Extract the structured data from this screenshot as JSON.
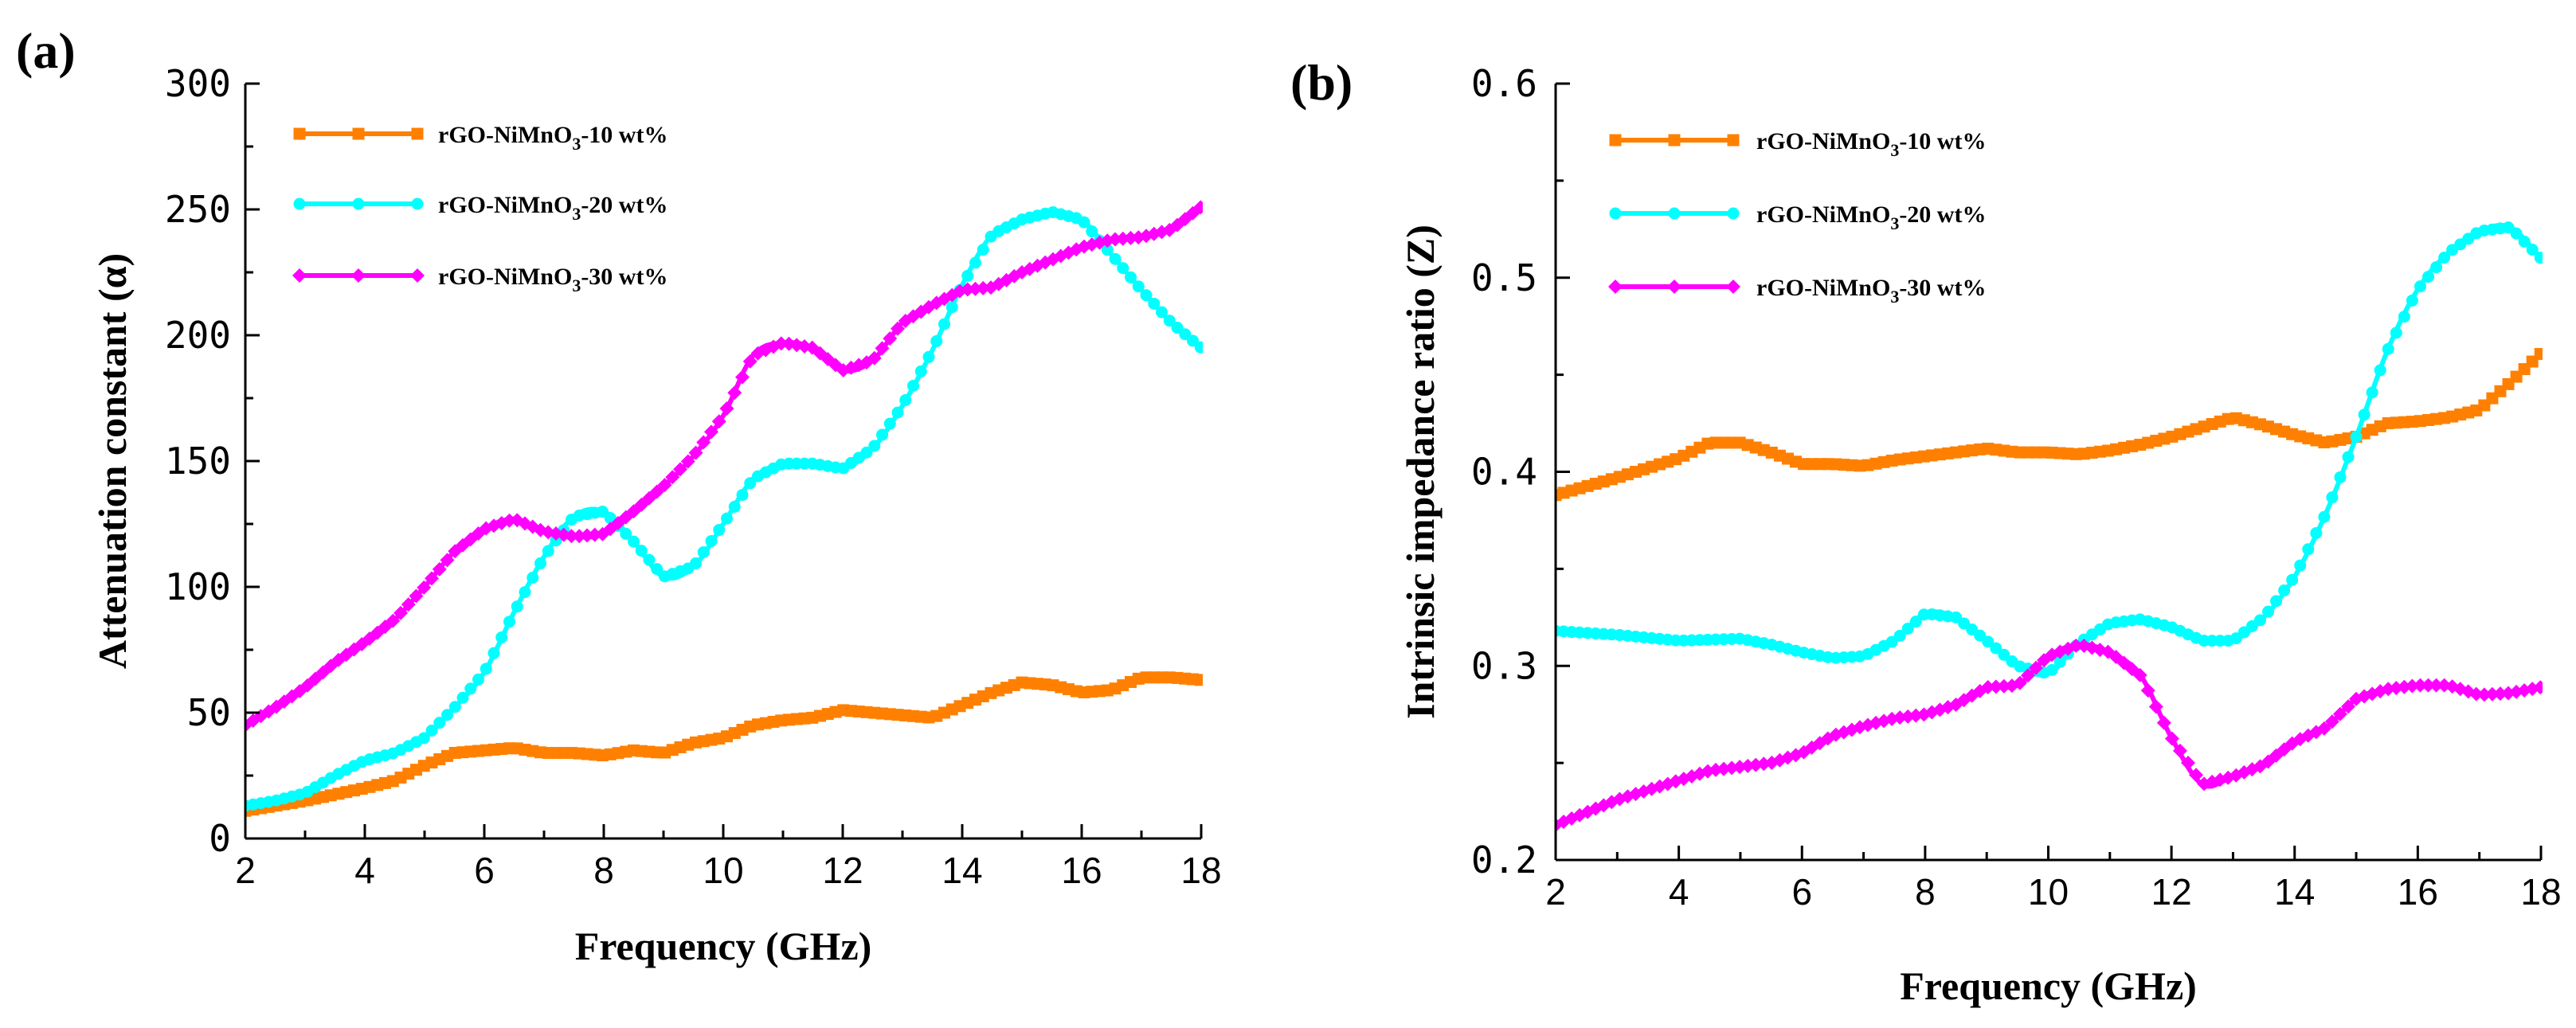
{
  "colors": {
    "series_10": "#ff8000",
    "series_20": "#00ffff",
    "series_30": "#ff00ff",
    "axis": "#000000"
  },
  "chart_data": [
    {
      "id": "a",
      "panel_label": "(a)",
      "type": "line",
      "title": "",
      "xlabel": "Frequency (GHz)",
      "ylabel": "Attenuation constant (α)",
      "xlim": [
        2,
        18
      ],
      "ylim": [
        0,
        300
      ],
      "xticks": [
        2,
        4,
        6,
        8,
        10,
        12,
        14,
        16,
        18
      ],
      "yticks": [
        0,
        50,
        100,
        150,
        200,
        250,
        300
      ],
      "xtick_labels": [
        "2",
        "4",
        "6",
        "8",
        "10",
        "12",
        "14",
        "16",
        "18"
      ],
      "ytick_labels": [
        "0",
        "50",
        "100",
        "150",
        "200",
        "250",
        "300"
      ],
      "legend_position": "top-left",
      "series": [
        {
          "name": "rGO-NiMnO3-10 wt%",
          "legend": {
            "prefix": "rGO-NiMnO",
            "sub": "3",
            "suffix": "-10 wt%"
          },
          "color": "#ff8000",
          "marker": "square",
          "points": [
            [
              2,
              11
            ],
            [
              3,
              15
            ],
            [
              4,
              20
            ],
            [
              4.5,
              23
            ],
            [
              5,
              29
            ],
            [
              5.5,
              34
            ],
            [
              6,
              35
            ],
            [
              6.5,
              36
            ],
            [
              7,
              34
            ],
            [
              7.5,
              34
            ],
            [
              8,
              33
            ],
            [
              8.5,
              35
            ],
            [
              9,
              34
            ],
            [
              9.5,
              38
            ],
            [
              10,
              40
            ],
            [
              10.5,
              45
            ],
            [
              11,
              47
            ],
            [
              11.5,
              48
            ],
            [
              12,
              51
            ],
            [
              12.5,
              50
            ],
            [
              13,
              49
            ],
            [
              13.5,
              48
            ],
            [
              14,
              53
            ],
            [
              14.5,
              58
            ],
            [
              15,
              62
            ],
            [
              15.5,
              61
            ],
            [
              16,
              58
            ],
            [
              16.5,
              59
            ],
            [
              17,
              64
            ],
            [
              17.5,
              64
            ],
            [
              18,
              63
            ]
          ]
        },
        {
          "name": "rGO-NiMnO3-20 wt%",
          "legend": {
            "prefix": "rGO-NiMnO",
            "sub": "3",
            "suffix": "-20 wt%"
          },
          "color": "#00ffff",
          "marker": "circle",
          "points": [
            [
              2,
              13
            ],
            [
              2.5,
              15
            ],
            [
              3,
              18
            ],
            [
              3.5,
              25
            ],
            [
              4,
              31
            ],
            [
              4.5,
              34
            ],
            [
              5,
              40
            ],
            [
              5.5,
              52
            ],
            [
              6,
              66
            ],
            [
              6.5,
              90
            ],
            [
              7,
              112
            ],
            [
              7.5,
              128
            ],
            [
              8,
              130
            ],
            [
              8.5,
              118
            ],
            [
              9,
              104
            ],
            [
              9.5,
              108
            ],
            [
              10,
              125
            ],
            [
              10.5,
              143
            ],
            [
              11,
              149
            ],
            [
              11.5,
              149
            ],
            [
              12,
              147
            ],
            [
              12.5,
              155
            ],
            [
              13,
              172
            ],
            [
              13.5,
              194
            ],
            [
              14,
              220
            ],
            [
              14.5,
              240
            ],
            [
              15,
              246
            ],
            [
              15.5,
              249
            ],
            [
              16,
              246
            ],
            [
              16.5,
              232
            ],
            [
              17,
              218
            ],
            [
              17.5,
              205
            ],
            [
              18,
              195
            ]
          ]
        },
        {
          "name": "rGO-NiMnO3-30 wt%",
          "legend": {
            "prefix": "rGO-NiMnO",
            "sub": "3",
            "suffix": "-30 wt%"
          },
          "color": "#ff00ff",
          "marker": "diamond",
          "points": [
            [
              2,
              45
            ],
            [
              2.5,
              52
            ],
            [
              3,
              60
            ],
            [
              3.5,
              70
            ],
            [
              4,
              78
            ],
            [
              4.5,
              87
            ],
            [
              5,
              100
            ],
            [
              5.5,
              114
            ],
            [
              6,
              123
            ],
            [
              6.5,
              127
            ],
            [
              7,
              122
            ],
            [
              7.5,
              120
            ],
            [
              8,
              121
            ],
            [
              8.5,
              130
            ],
            [
              9,
              140
            ],
            [
              9.5,
              152
            ],
            [
              10,
              168
            ],
            [
              10.5,
              192
            ],
            [
              11,
              197
            ],
            [
              11.5,
              195
            ],
            [
              12,
              186
            ],
            [
              12.5,
              190
            ],
            [
              13,
              205
            ],
            [
              13.5,
              212
            ],
            [
              14,
              218
            ],
            [
              14.5,
              219
            ],
            [
              15,
              225
            ],
            [
              15.5,
              230
            ],
            [
              16,
              235
            ],
            [
              16.5,
              238
            ],
            [
              17,
              239
            ],
            [
              17.5,
              242
            ],
            [
              18,
              251
            ]
          ]
        }
      ]
    },
    {
      "id": "b",
      "panel_label": "(b)",
      "type": "line",
      "title": "",
      "xlabel": "Frequency (GHz)",
      "ylabel": "Intrinsic impedance ratio (Z)",
      "xlim": [
        2,
        18
      ],
      "ylim": [
        0.2,
        0.6
      ],
      "xticks": [
        2,
        4,
        6,
        8,
        10,
        12,
        14,
        16,
        18
      ],
      "yticks": [
        0.2,
        0.3,
        0.4,
        0.5,
        0.6
      ],
      "xtick_labels": [
        "2",
        "4",
        "6",
        "8",
        "10",
        "12",
        "14",
        "16",
        "18"
      ],
      "ytick_labels": [
        "0.2",
        "0.3",
        "0.4",
        "0.5",
        "0.6"
      ],
      "legend_position": "top-left",
      "series": [
        {
          "name": "rGO-NiMnO3-10 wt%",
          "legend": {
            "prefix": "rGO-NiMnO",
            "sub": "3",
            "suffix": "-10 wt%"
          },
          "color": "#ff8000",
          "marker": "square",
          "points": [
            [
              2,
              0.388
            ],
            [
              3,
              0.397
            ],
            [
              4,
              0.407
            ],
            [
              4.5,
              0.415
            ],
            [
              5,
              0.415
            ],
            [
              5.5,
              0.41
            ],
            [
              6,
              0.404
            ],
            [
              6.5,
              0.404
            ],
            [
              7,
              0.403
            ],
            [
              7.5,
              0.406
            ],
            [
              8,
              0.408
            ],
            [
              8.5,
              0.41
            ],
            [
              9,
              0.412
            ],
            [
              9.5,
              0.41
            ],
            [
              10,
              0.41
            ],
            [
              10.5,
              0.409
            ],
            [
              11,
              0.411
            ],
            [
              11.5,
              0.414
            ],
            [
              12,
              0.418
            ],
            [
              12.5,
              0.423
            ],
            [
              13,
              0.428
            ],
            [
              13.5,
              0.424
            ],
            [
              14,
              0.419
            ],
            [
              14.5,
              0.415
            ],
            [
              15,
              0.418
            ],
            [
              15.5,
              0.425
            ],
            [
              16,
              0.426
            ],
            [
              16.5,
              0.428
            ],
            [
              17,
              0.432
            ],
            [
              17.5,
              0.446
            ],
            [
              18,
              0.461
            ]
          ]
        },
        {
          "name": "rGO-NiMnO3-20 wt%",
          "legend": {
            "prefix": "rGO-NiMnO",
            "sub": "3",
            "suffix": "-20 wt%"
          },
          "color": "#00ffff",
          "marker": "circle",
          "points": [
            [
              2,
              0.318
            ],
            [
              3,
              0.316
            ],
            [
              4,
              0.313
            ],
            [
              5,
              0.314
            ],
            [
              5.5,
              0.311
            ],
            [
              6,
              0.307
            ],
            [
              6.5,
              0.304
            ],
            [
              7,
              0.305
            ],
            [
              7.5,
              0.313
            ],
            [
              8,
              0.327
            ],
            [
              8.5,
              0.325
            ],
            [
              9,
              0.313
            ],
            [
              9.5,
              0.3
            ],
            [
              10,
              0.296
            ],
            [
              10.5,
              0.312
            ],
            [
              11,
              0.322
            ],
            [
              11.5,
              0.324
            ],
            [
              12,
              0.32
            ],
            [
              12.5,
              0.313
            ],
            [
              13,
              0.313
            ],
            [
              13.5,
              0.325
            ],
            [
              14,
              0.346
            ],
            [
              14.5,
              0.378
            ],
            [
              15,
              0.418
            ],
            [
              15.5,
              0.462
            ],
            [
              16,
              0.494
            ],
            [
              16.5,
              0.513
            ],
            [
              17,
              0.524
            ],
            [
              17.5,
              0.526
            ],
            [
              18,
              0.51
            ]
          ]
        },
        {
          "name": "rGO-NiMnO3-30 wt%",
          "legend": {
            "prefix": "rGO-NiMnO",
            "sub": "3",
            "suffix": "-30 wt%"
          },
          "color": "#ff00ff",
          "marker": "diamond",
          "points": [
            [
              2,
              0.218
            ],
            [
              3,
              0.231
            ],
            [
              4,
              0.241
            ],
            [
              4.5,
              0.246
            ],
            [
              5,
              0.248
            ],
            [
              5.5,
              0.25
            ],
            [
              6,
              0.255
            ],
            [
              6.5,
              0.264
            ],
            [
              7,
              0.269
            ],
            [
              7.5,
              0.273
            ],
            [
              8,
              0.275
            ],
            [
              8.5,
              0.28
            ],
            [
              9,
              0.289
            ],
            [
              9.5,
              0.29
            ],
            [
              10,
              0.305
            ],
            [
              10.5,
              0.311
            ],
            [
              11,
              0.307
            ],
            [
              11.5,
              0.295
            ],
            [
              12,
              0.263
            ],
            [
              12.5,
              0.239
            ],
            [
              13,
              0.243
            ],
            [
              13.5,
              0.249
            ],
            [
              14,
              0.261
            ],
            [
              14.5,
              0.268
            ],
            [
              15,
              0.283
            ],
            [
              15.5,
              0.288
            ],
            [
              16,
              0.29
            ],
            [
              16.5,
              0.29
            ],
            [
              17,
              0.285
            ],
            [
              17.5,
              0.286
            ],
            [
              18,
              0.289
            ]
          ]
        }
      ]
    }
  ]
}
